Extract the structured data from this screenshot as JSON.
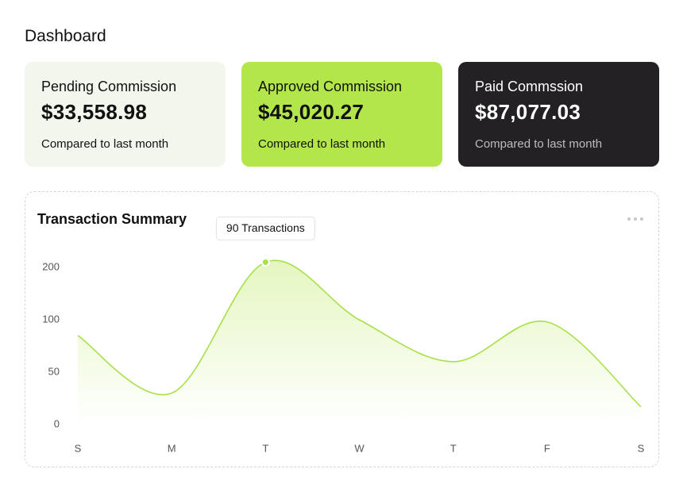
{
  "header": {
    "title": "Dashboard"
  },
  "cards": [
    {
      "title": "Pending Commission",
      "amount": "$33,558.98",
      "note": "Compared to last month"
    },
    {
      "title": "Approved Commission",
      "amount": "$45,020.27",
      "note": "Compared to last month"
    },
    {
      "title": "Paid Commssion",
      "amount": "$87,077.03",
      "note": "Compared to last month"
    }
  ],
  "chart": {
    "type": "line",
    "title": "Transaction Summary",
    "tooltip": "90 Transactions",
    "categories": [
      "S",
      "M",
      "T",
      "W",
      "T",
      "F",
      "S"
    ],
    "values": [
      85,
      30,
      210,
      100,
      60,
      98,
      17
    ],
    "color": "#a8e04a",
    "yticks": [
      0,
      50,
      100,
      200
    ],
    "ylim": [
      0,
      200
    ]
  }
}
